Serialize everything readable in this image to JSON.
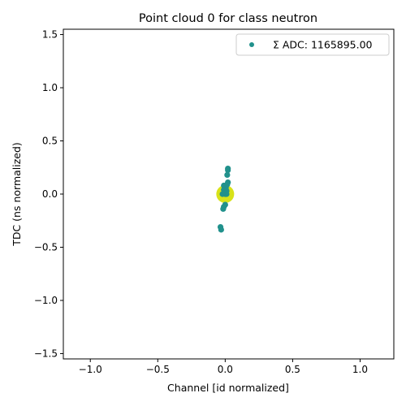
{
  "chart_data": {
    "type": "scatter",
    "title": "Point cloud 0 for class neutron",
    "xlabel": "Channel [id normalized]",
    "ylabel": "TDC (ns normalized)",
    "xlim": [
      -1.2,
      1.25
    ],
    "ylim": [
      -1.55,
      1.55
    ],
    "xticks": [
      -1.0,
      -0.5,
      0.0,
      0.5,
      1.0
    ],
    "xtick_labels": [
      "−1.0",
      "−0.5",
      "0.0",
      "0.5",
      "1.0"
    ],
    "yticks": [
      -1.5,
      -1.0,
      -0.5,
      0.0,
      0.5,
      1.0,
      1.5
    ],
    "ytick_labels": [
      "−1.5",
      "−1.0",
      "−0.5",
      "0.0",
      "0.5",
      "1.0",
      "1.5"
    ],
    "grid": false,
    "legend_position": "top-right",
    "series": [
      {
        "name": "Σ ADC: 1165895.00",
        "color": "#21918c",
        "highlight_color": "#d8e219",
        "points": [
          {
            "x": 0.0,
            "y": 0.0,
            "weight": "high"
          },
          {
            "x": 0.02,
            "y": 0.24
          },
          {
            "x": 0.02,
            "y": 0.225
          },
          {
            "x": 0.015,
            "y": 0.18
          },
          {
            "x": 0.02,
            "y": 0.11
          },
          {
            "x": 0.015,
            "y": 0.09
          },
          {
            "x": -0.01,
            "y": 0.08
          },
          {
            "x": 0.005,
            "y": 0.06
          },
          {
            "x": -0.01,
            "y": 0.04
          },
          {
            "x": 0.01,
            "y": 0.03
          },
          {
            "x": -0.005,
            "y": 0.01
          },
          {
            "x": 0.01,
            "y": 0.0
          },
          {
            "x": -0.02,
            "y": 0.0
          },
          {
            "x": 0.0,
            "y": -0.1
          },
          {
            "x": -0.01,
            "y": -0.12
          },
          {
            "x": -0.015,
            "y": -0.14
          },
          {
            "x": -0.035,
            "y": -0.31
          },
          {
            "x": -0.03,
            "y": -0.335
          }
        ]
      }
    ]
  }
}
